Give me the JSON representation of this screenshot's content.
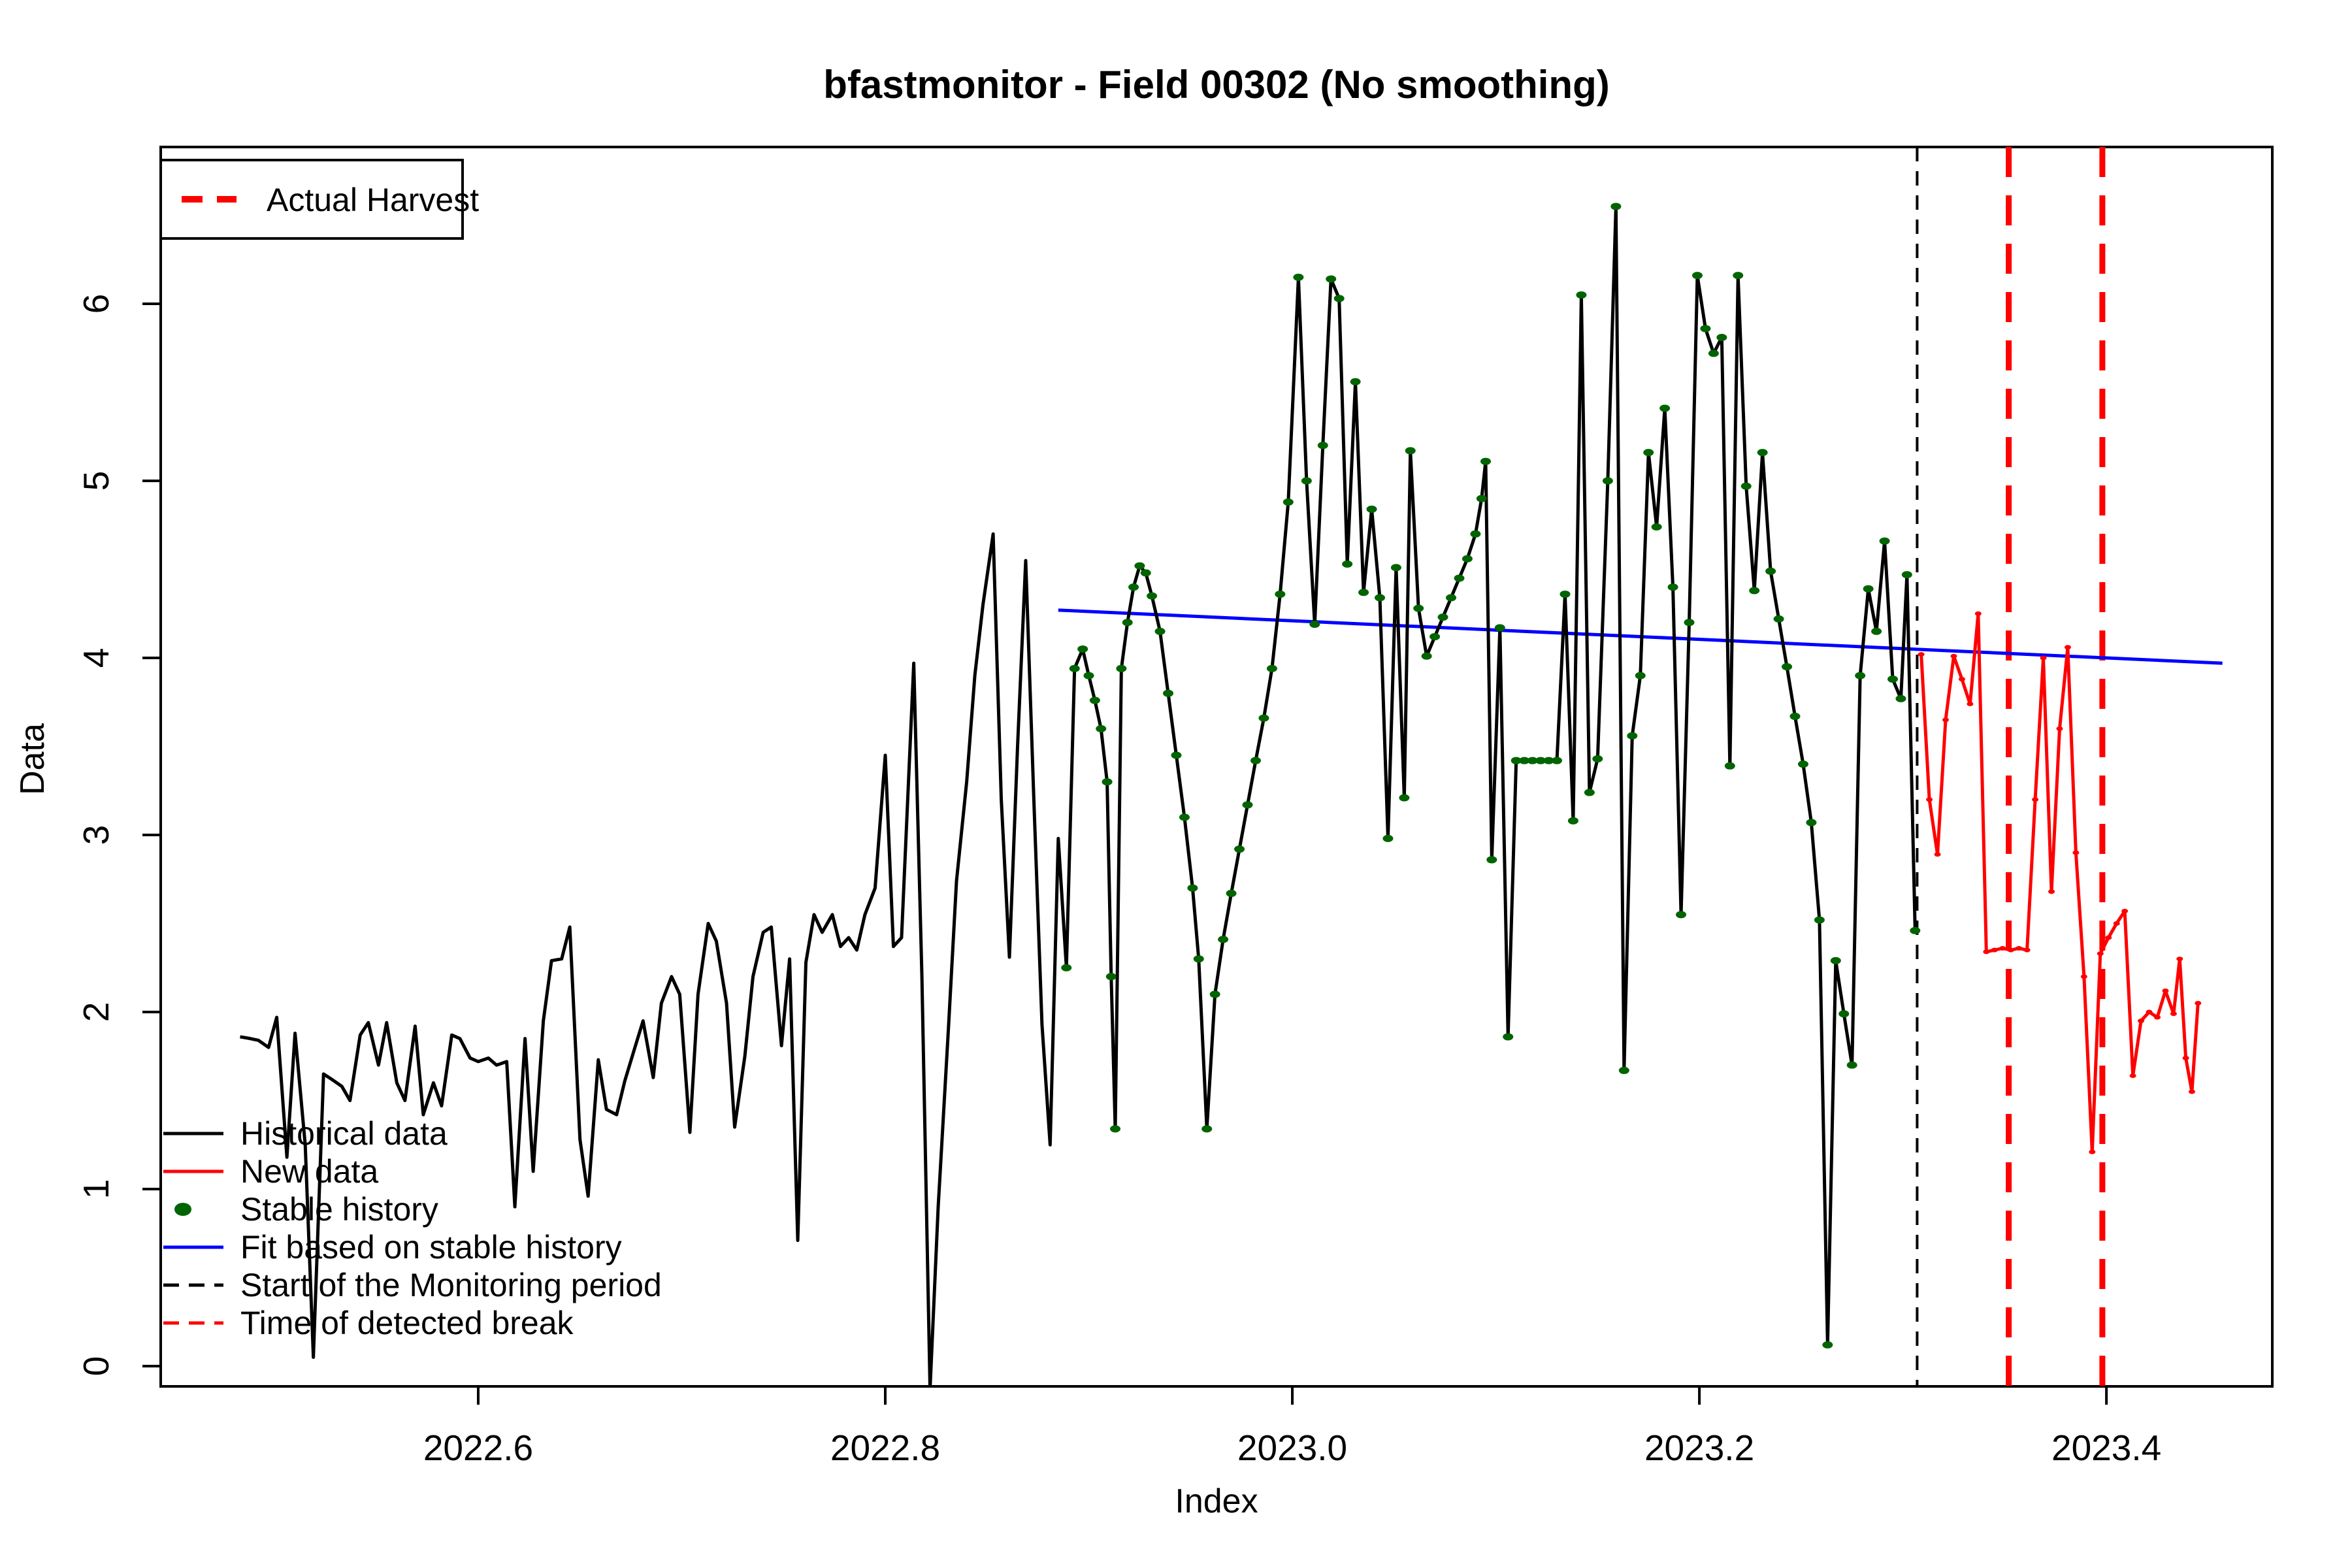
{
  "title": "bfastmonitor - Field 00302 (No smoothing)",
  "axes": {
    "x_label": "Index",
    "y_label": "Data",
    "x_ticks": [
      {
        "value": 2022.6,
        "label": "2022.6"
      },
      {
        "value": 2022.8,
        "label": "2022.8"
      },
      {
        "value": 2023.0,
        "label": "2023.0"
      },
      {
        "value": 2023.2,
        "label": "2023.2"
      },
      {
        "value": 2023.4,
        "label": "2023.4"
      }
    ],
    "y_ticks": [
      {
        "value": 0,
        "label": "0"
      },
      {
        "value": 1,
        "label": "1"
      },
      {
        "value": 2,
        "label": "2"
      },
      {
        "value": 3,
        "label": "3"
      },
      {
        "value": 4,
        "label": "4"
      },
      {
        "value": 5,
        "label": "5"
      },
      {
        "value": 6,
        "label": "6"
      }
    ]
  },
  "colors": {
    "historical": "#000000",
    "new_data": "#FF0000",
    "stable_history": "#006400",
    "fit": "#0000FF",
    "monitor_start": "#000000",
    "detected_break": "#FF0000",
    "harvest": "#FF0000"
  },
  "legend_box": {
    "label": "Actual Harvest"
  },
  "legend_items": [
    {
      "label": "Historical data",
      "marker": "line",
      "color": "#000000"
    },
    {
      "label": "New data",
      "marker": "line",
      "color": "#FF0000"
    },
    {
      "label": "Stable history",
      "marker": "dot",
      "color": "#006400"
    },
    {
      "label": "Fit based on stable history",
      "marker": "line",
      "color": "#0000FF"
    },
    {
      "label": "Start of the Monitoring period",
      "marker": "dashed",
      "color": "#000000"
    },
    {
      "label": "Time of detected break",
      "marker": "dashed",
      "color": "#FF0000"
    }
  ],
  "chart_data": {
    "type": "line",
    "title": "bfastmonitor - Field 00302 (No smoothing)",
    "xlabel": "Index",
    "ylabel": "Data",
    "xlim": [
      2022.444,
      2023.4815
    ],
    "ylim": [
      -0.1144,
      6.8856
    ],
    "grid": false,
    "series": [
      {
        "name": "Historical data",
        "type": "line",
        "color": "#000000",
        "points": [
          [
            2022.483,
            1.86
          ],
          [
            2022.488,
            1.85
          ],
          [
            2022.492,
            1.84
          ],
          [
            2022.497,
            1.8
          ],
          [
            2022.501,
            1.97
          ],
          [
            2022.506,
            1.18
          ],
          [
            2022.51,
            1.88
          ],
          [
            2022.515,
            1.25
          ],
          [
            2022.519,
            0.05
          ],
          [
            2022.524,
            1.65
          ],
          [
            2022.528,
            1.62
          ],
          [
            2022.533,
            1.58
          ],
          [
            2022.537,
            1.5
          ],
          [
            2022.542,
            1.87
          ],
          [
            2022.546,
            1.94
          ],
          [
            2022.551,
            1.7
          ],
          [
            2022.555,
            1.94
          ],
          [
            2022.56,
            1.6
          ],
          [
            2022.564,
            1.5
          ],
          [
            2022.569,
            1.92
          ],
          [
            2022.573,
            1.42
          ],
          [
            2022.578,
            1.6
          ],
          [
            2022.582,
            1.47
          ],
          [
            2022.587,
            1.87
          ],
          [
            2022.591,
            1.85
          ],
          [
            2022.596,
            1.74
          ],
          [
            2022.6,
            1.72
          ],
          [
            2022.605,
            1.74
          ],
          [
            2022.609,
            1.7
          ],
          [
            2022.614,
            1.72
          ],
          [
            2022.618,
            0.9
          ],
          [
            2022.623,
            1.85
          ],
          [
            2022.627,
            1.1
          ],
          [
            2022.632,
            1.95
          ],
          [
            2022.636,
            2.29
          ],
          [
            2022.641,
            2.3
          ],
          [
            2022.645,
            2.48
          ],
          [
            2022.65,
            1.28
          ],
          [
            2022.654,
            0.96
          ],
          [
            2022.659,
            1.73
          ],
          [
            2022.663,
            1.45
          ],
          [
            2022.668,
            1.42
          ],
          [
            2022.672,
            1.61
          ],
          [
            2022.677,
            1.8
          ],
          [
            2022.681,
            1.95
          ],
          [
            2022.686,
            1.63
          ],
          [
            2022.69,
            2.05
          ],
          [
            2022.695,
            2.2
          ],
          [
            2022.699,
            2.1
          ],
          [
            2022.704,
            1.32
          ],
          [
            2022.708,
            2.1
          ],
          [
            2022.713,
            2.5
          ],
          [
            2022.717,
            2.4
          ],
          [
            2022.722,
            2.05
          ],
          [
            2022.726,
            1.35
          ],
          [
            2022.731,
            1.75
          ],
          [
            2022.735,
            2.2
          ],
          [
            2022.74,
            2.45
          ],
          [
            2022.744,
            2.48
          ],
          [
            2022.749,
            1.81
          ],
          [
            2022.753,
            2.3
          ],
          [
            2022.757,
            0.71
          ],
          [
            2022.761,
            2.28
          ],
          [
            2022.765,
            2.55
          ],
          [
            2022.769,
            2.45
          ],
          [
            2022.774,
            2.55
          ],
          [
            2022.778,
            2.37
          ],
          [
            2022.782,
            2.42
          ],
          [
            2022.786,
            2.35
          ],
          [
            2022.79,
            2.55
          ],
          [
            2022.795,
            2.7
          ],
          [
            2022.8,
            3.45
          ],
          [
            2022.804,
            2.37
          ],
          [
            2022.808,
            2.42
          ],
          [
            2022.814,
            3.97
          ],
          [
            2022.818,
            2.2
          ],
          [
            2022.822,
            -0.13
          ],
          [
            2022.826,
            0.9
          ],
          [
            2022.831,
            1.9
          ],
          [
            2022.835,
            2.74
          ],
          [
            2022.84,
            3.3
          ],
          [
            2022.844,
            3.9
          ],
          [
            2022.848,
            4.3
          ],
          [
            2022.853,
            4.7
          ],
          [
            2022.857,
            3.2
          ],
          [
            2022.861,
            2.31
          ],
          [
            2022.865,
            3.5
          ],
          [
            2022.869,
            4.55
          ],
          [
            2022.873,
            3.2
          ],
          [
            2022.877,
            1.93
          ],
          [
            2022.881,
            1.25
          ],
          [
            2022.885,
            2.98
          ],
          [
            2022.889,
            2.25
          ],
          [
            2022.893,
            3.94
          ],
          [
            2022.897,
            4.05
          ],
          [
            2022.9,
            3.9
          ],
          [
            2022.903,
            3.76
          ],
          [
            2022.906,
            3.6
          ],
          [
            2022.909,
            3.3
          ],
          [
            2022.911,
            2.2
          ],
          [
            2022.913,
            1.34
          ],
          [
            2022.916,
            3.94
          ],
          [
            2022.919,
            4.2
          ],
          [
            2022.922,
            4.4
          ],
          [
            2022.925,
            4.52
          ],
          [
            2022.928,
            4.48
          ],
          [
            2022.931,
            4.35
          ],
          [
            2022.935,
            4.15
          ],
          [
            2022.939,
            3.8
          ],
          [
            2022.943,
            3.45
          ],
          [
            2022.947,
            3.1
          ],
          [
            2022.951,
            2.7
          ],
          [
            2022.954,
            2.3
          ],
          [
            2022.958,
            1.34
          ],
          [
            2022.962,
            2.1
          ],
          [
            2022.966,
            2.41
          ],
          [
            2022.97,
            2.67
          ],
          [
            2022.974,
            2.92
          ],
          [
            2022.978,
            3.17
          ],
          [
            2022.982,
            3.42
          ],
          [
            2022.986,
            3.66
          ],
          [
            2022.99,
            3.94
          ],
          [
            2022.994,
            4.36
          ],
          [
            2022.998,
            4.88
          ],
          [
            2023.003,
            6.15
          ],
          [
            2023.007,
            5.0
          ],
          [
            2023.011,
            4.19
          ],
          [
            2023.015,
            5.2
          ],
          [
            2023.019,
            6.14
          ],
          [
            2023.023,
            6.03
          ],
          [
            2023.027,
            4.53
          ],
          [
            2023.031,
            5.56
          ],
          [
            2023.035,
            4.37
          ],
          [
            2023.039,
            4.84
          ],
          [
            2023.043,
            4.34
          ],
          [
            2023.047,
            2.98
          ],
          [
            2023.051,
            4.51
          ],
          [
            2023.055,
            3.21
          ],
          [
            2023.058,
            5.17
          ],
          [
            2023.062,
            4.28
          ],
          [
            2023.066,
            4.01
          ],
          [
            2023.07,
            4.12
          ],
          [
            2023.074,
            4.23
          ],
          [
            2023.078,
            4.34
          ],
          [
            2023.082,
            4.45
          ],
          [
            2023.086,
            4.56
          ],
          [
            2023.09,
            4.7
          ],
          [
            2023.093,
            4.9
          ],
          [
            2023.095,
            5.11
          ],
          [
            2023.098,
            2.86
          ],
          [
            2023.102,
            4.17
          ],
          [
            2023.106,
            1.86
          ],
          [
            2023.11,
            3.42
          ],
          [
            2023.114,
            3.42
          ],
          [
            2023.118,
            3.42
          ],
          [
            2023.122,
            3.42
          ],
          [
            2023.126,
            3.42
          ],
          [
            2023.13,
            3.42
          ],
          [
            2023.134,
            4.36
          ],
          [
            2023.138,
            3.08
          ],
          [
            2023.142,
            6.05
          ],
          [
            2023.146,
            3.24
          ],
          [
            2023.15,
            3.43
          ],
          [
            2023.155,
            5.0
          ],
          [
            2023.159,
            6.55
          ],
          [
            2023.163,
            1.67
          ],
          [
            2023.167,
            3.56
          ],
          [
            2023.171,
            3.9
          ],
          [
            2023.175,
            5.16
          ],
          [
            2023.179,
            4.74
          ],
          [
            2023.183,
            5.41
          ],
          [
            2023.187,
            4.4
          ],
          [
            2023.191,
            2.55
          ],
          [
            2023.195,
            4.2
          ],
          [
            2023.199,
            6.16
          ],
          [
            2023.203,
            5.86
          ],
          [
            2023.207,
            5.72
          ],
          [
            2023.211,
            5.81
          ],
          [
            2023.215,
            3.39
          ],
          [
            2023.219,
            6.16
          ],
          [
            2023.223,
            4.97
          ],
          [
            2023.227,
            4.38
          ],
          [
            2023.231,
            5.16
          ],
          [
            2023.235,
            4.49
          ],
          [
            2023.239,
            4.22
          ],
          [
            2023.243,
            3.95
          ],
          [
            2023.247,
            3.67
          ],
          [
            2023.251,
            3.4
          ],
          [
            2023.255,
            3.07
          ],
          [
            2023.259,
            2.52
          ],
          [
            2023.263,
            0.12
          ],
          [
            2023.267,
            2.29
          ],
          [
            2023.271,
            1.99
          ],
          [
            2023.275,
            1.7
          ],
          [
            2023.279,
            3.9
          ],
          [
            2023.283,
            4.39
          ],
          [
            2023.287,
            4.15
          ],
          [
            2023.291,
            4.66
          ],
          [
            2023.295,
            3.88
          ],
          [
            2023.299,
            3.77
          ],
          [
            2023.302,
            4.47
          ],
          [
            2023.306,
            2.46
          ]
        ]
      },
      {
        "name": "Stable history",
        "type": "points-on-historical",
        "color": "#006400",
        "t_start": 2022.889,
        "t_end": 2023.306
      },
      {
        "name": "Fit based on stable history",
        "type": "line",
        "color": "#0000FF",
        "points": [
          [
            2022.885,
            4.27
          ],
          [
            2023.457,
            3.97
          ]
        ]
      },
      {
        "name": "New data",
        "type": "line-points",
        "color": "#FF0000",
        "points": [
          [
            2023.309,
            4.02
          ],
          [
            2023.313,
            3.2
          ],
          [
            2023.317,
            2.89
          ],
          [
            2023.321,
            3.65
          ],
          [
            2023.325,
            4.01
          ],
          [
            2023.329,
            3.88
          ],
          [
            2023.333,
            3.74
          ],
          [
            2023.337,
            4.25
          ],
          [
            2023.341,
            2.34
          ],
          [
            2023.345,
            2.35
          ],
          [
            2023.349,
            2.36
          ],
          [
            2023.353,
            2.35
          ],
          [
            2023.357,
            2.36
          ],
          [
            2023.361,
            2.35
          ],
          [
            2023.365,
            3.2
          ],
          [
            2023.369,
            4.0
          ],
          [
            2023.373,
            2.68
          ],
          [
            2023.377,
            3.6
          ],
          [
            2023.381,
            4.06
          ],
          [
            2023.385,
            2.9
          ],
          [
            2023.389,
            2.2
          ],
          [
            2023.393,
            1.21
          ],
          [
            2023.397,
            2.33
          ],
          [
            2023.401,
            2.42
          ],
          [
            2023.405,
            2.5
          ],
          [
            2023.409,
            2.57
          ],
          [
            2023.413,
            1.64
          ],
          [
            2023.417,
            1.95
          ],
          [
            2023.421,
            2.0
          ],
          [
            2023.425,
            1.97
          ],
          [
            2023.429,
            2.12
          ],
          [
            2023.433,
            1.99
          ],
          [
            2023.436,
            2.3
          ],
          [
            2023.439,
            1.74
          ],
          [
            2023.442,
            1.55
          ],
          [
            2023.445,
            2.05
          ]
        ]
      }
    ],
    "vlines": [
      {
        "x": 2023.307,
        "label": "Start of the Monitoring period",
        "color": "#000000",
        "style": "dashed-thin"
      },
      {
        "x": 2023.352,
        "label": "Actual Harvest",
        "color": "#FF0000",
        "style": "dashed-thick"
      },
      {
        "x": 2023.398,
        "label": "Time of detected break",
        "color": "#FF0000",
        "style": "dashed-thick"
      }
    ],
    "legend_position": {
      "harvest_box": "top-left",
      "series_legend": "bottom-left"
    }
  }
}
